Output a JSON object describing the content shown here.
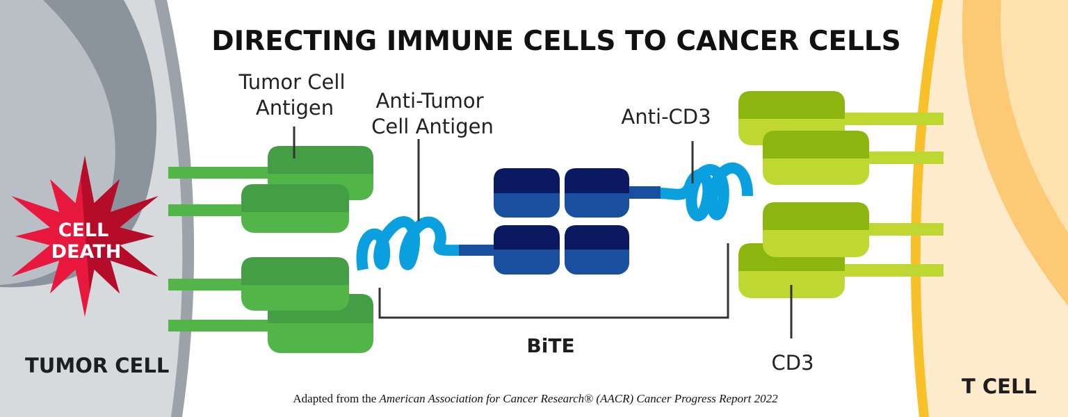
{
  "title": "DIRECTING IMMUNE CELLS TO CANCER CELLS",
  "labels": {
    "tumor_cell_antigen": [
      "Tumor Cell",
      "Antigen"
    ],
    "anti_tumor_cell_antigen": [
      "Anti-Tumor",
      "Cell Antigen"
    ],
    "anti_cd3": "Anti-CD3",
    "bite": "BiTE",
    "cd3": "CD3",
    "tumor_cell": "TUMOR CELL",
    "t_cell": "T CELL",
    "cell_death": [
      "CELL",
      "DEATH"
    ]
  },
  "caption": {
    "prefix": "Adapted from the ",
    "italic": "American Association for Cancer Research® (AACR) Cancer Progress Report 2022"
  },
  "colors": {
    "tumor_cell": "#d6dadd",
    "tumor_membrane": "#9ba2a9",
    "tumor_nucleus_ring": "#8b949c",
    "tumor_nucleus": "#b9bfc5",
    "t_cell": "#fdebcb",
    "t_membrane": "#f8c12a",
    "t_nucleus_ring": "#fcc974",
    "t_nucleus": "#fde2ae",
    "antigen_dark": "#449e45",
    "antigen_light": "#52b548",
    "cd3_dark": "#8db50f",
    "cd3_light": "#bfd731",
    "bite_dark": "#0b1a60",
    "bite_light": "#1a4fa0",
    "coil": "#0aa0e0",
    "starburst_left": "#e8173d",
    "starburst_right": "#b50c2a"
  }
}
